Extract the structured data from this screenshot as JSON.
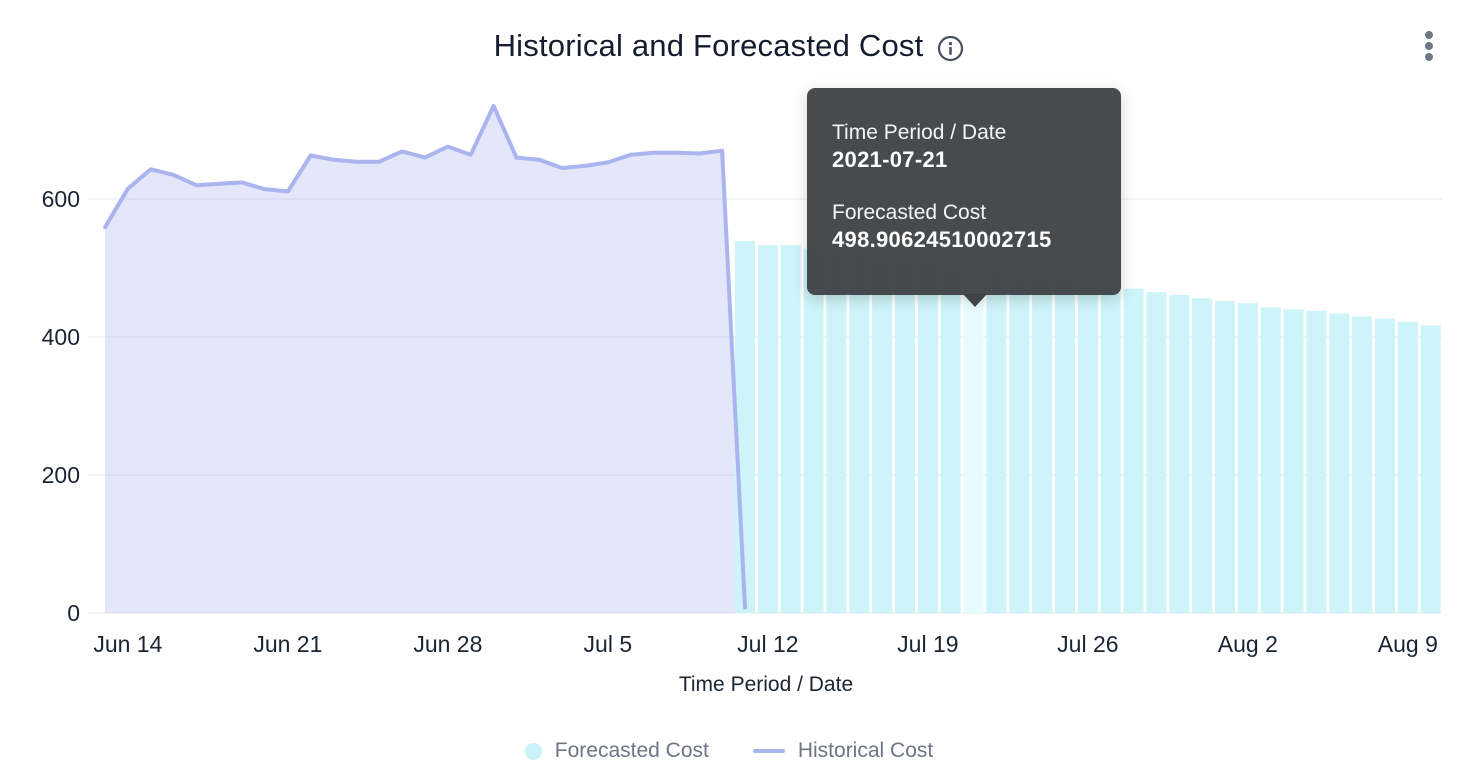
{
  "header": {
    "title": "Historical and Forecasted Cost"
  },
  "tooltip": {
    "field1_label": "Time Period / Date",
    "field1_value": "2021-07-21",
    "field2_label": "Forecasted Cost",
    "field2_value": "498.90624510002715"
  },
  "legend": {
    "forecast_label": "Forecasted Cost",
    "historical_label": "Historical Cost"
  },
  "colors": {
    "bar": "#ccf4f9",
    "bar_highlight": "#e6fbfe",
    "area_line": "#aab4ef",
    "area_fill": "rgba(172,181,240,0.33)",
    "gridline": "#e7e7eb",
    "tooltip_bg": "rgba(58,61,63,0.93)",
    "text_dark": "#1a2433",
    "legend_text": "#6d7584"
  },
  "chart_data": {
    "type": "mixed",
    "title": "Historical and Forecasted Cost",
    "xlabel": "Time Period / Date",
    "ylabel": "",
    "ylim": [
      0,
      745
    ],
    "yticks": [
      0,
      200,
      400,
      600
    ],
    "grid": true,
    "legend_position": "bottom",
    "xticks": [
      {
        "date": "2021-06-14",
        "label": "Jun 14"
      },
      {
        "date": "2021-06-21",
        "label": "Jun 21"
      },
      {
        "date": "2021-06-28",
        "label": "Jun 28"
      },
      {
        "date": "2021-07-05",
        "label": "Jul 5"
      },
      {
        "date": "2021-07-12",
        "label": "Jul 12"
      },
      {
        "date": "2021-07-19",
        "label": "Jul 19"
      },
      {
        "date": "2021-07-26",
        "label": "Jul 26"
      },
      {
        "date": "2021-08-02",
        "label": "Aug 2"
      },
      {
        "date": "2021-08-09",
        "label": "Aug 9"
      }
    ],
    "series": [
      {
        "name": "Historical Cost",
        "type": "area",
        "dates": [
          "2021-06-13",
          "2021-06-14",
          "2021-06-15",
          "2021-06-16",
          "2021-06-17",
          "2021-06-18",
          "2021-06-19",
          "2021-06-20",
          "2021-06-21",
          "2021-06-22",
          "2021-06-23",
          "2021-06-24",
          "2021-06-25",
          "2021-06-26",
          "2021-06-27",
          "2021-06-28",
          "2021-06-29",
          "2021-06-30",
          "2021-07-01",
          "2021-07-02",
          "2021-07-03",
          "2021-07-04",
          "2021-07-05",
          "2021-07-06",
          "2021-07-07",
          "2021-07-08",
          "2021-07-09",
          "2021-07-10",
          "2021-07-11"
        ],
        "values": [
          559,
          615,
          643,
          635,
          620,
          622,
          624,
          614,
          611,
          663,
          657,
          654,
          654,
          669,
          660,
          676,
          664,
          735,
          660,
          657,
          645,
          648,
          653,
          664,
          667,
          667,
          666,
          670,
          8
        ]
      },
      {
        "name": "Forecasted Cost",
        "type": "bar",
        "highlighted_date": "2021-07-21",
        "dates": [
          "2021-07-11",
          "2021-07-12",
          "2021-07-13",
          "2021-07-14",
          "2021-07-15",
          "2021-07-16",
          "2021-07-17",
          "2021-07-18",
          "2021-07-19",
          "2021-07-20",
          "2021-07-21",
          "2021-07-22",
          "2021-07-23",
          "2021-07-24",
          "2021-07-25",
          "2021-07-26",
          "2021-07-27",
          "2021-07-28",
          "2021-07-29",
          "2021-07-30",
          "2021-07-31",
          "2021-08-01",
          "2021-08-02",
          "2021-08-03",
          "2021-08-04",
          "2021-08-05",
          "2021-08-06",
          "2021-08-07",
          "2021-08-08",
          "2021-08-09",
          "2021-08-10"
        ],
        "values": [
          539,
          533,
          533,
          528,
          524,
          519,
          515,
          511,
          507,
          503,
          498.90624510002715,
          494,
          490,
          486,
          482,
          478,
          474,
          470,
          465,
          461,
          456,
          452,
          449,
          443,
          440,
          438,
          434,
          430,
          427,
          422,
          417
        ]
      }
    ]
  }
}
